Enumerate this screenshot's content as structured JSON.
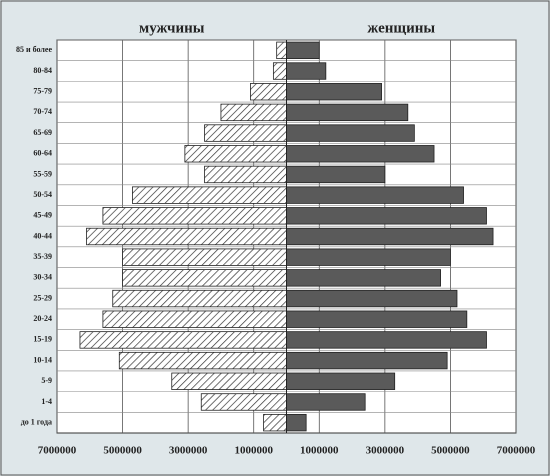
{
  "chart_data": {
    "type": "pyramid",
    "categories": [
      "до 1 года",
      "1-4",
      "5-9",
      "10-14",
      "15-19",
      "20-24",
      "25-29",
      "30-34",
      "35-39",
      "40-44",
      "45-49",
      "50-54",
      "55-59",
      "60-64",
      "65-69",
      "70-74",
      "75-79",
      "80-84",
      "85 и более"
    ],
    "series": [
      {
        "name": "мужчины",
        "color": "#ffffff",
        "hatch": true,
        "values": [
          -700000,
          -2600000,
          -3500000,
          -5100000,
          -6300000,
          -5600000,
          -5300000,
          -5000000,
          -5000000,
          -6100000,
          -5600000,
          -4700000,
          -2500000,
          -3100000,
          -2500000,
          -2000000,
          -1100000,
          -400000,
          -300000
        ]
      },
      {
        "name": "женщины",
        "color": "#5a5a5a",
        "hatch": false,
        "values": [
          600000,
          2400000,
          3300000,
          4900000,
          6100000,
          5500000,
          5200000,
          4700000,
          5000000,
          6300000,
          6100000,
          5400000,
          3000000,
          4500000,
          3900000,
          3700000,
          2900000,
          1200000,
          1000000
        ]
      }
    ],
    "xlim": [
      -7000000,
      7000000
    ],
    "xticks": [
      {
        "value": -7000000,
        "label": "7000000"
      },
      {
        "value": -5000000,
        "label": "5000000"
      },
      {
        "value": -3000000,
        "label": "3000000"
      },
      {
        "value": -1000000,
        "label": "1000000"
      },
      1000000,
      3000000,
      5000000,
      7000000
    ],
    "grid": true
  }
}
